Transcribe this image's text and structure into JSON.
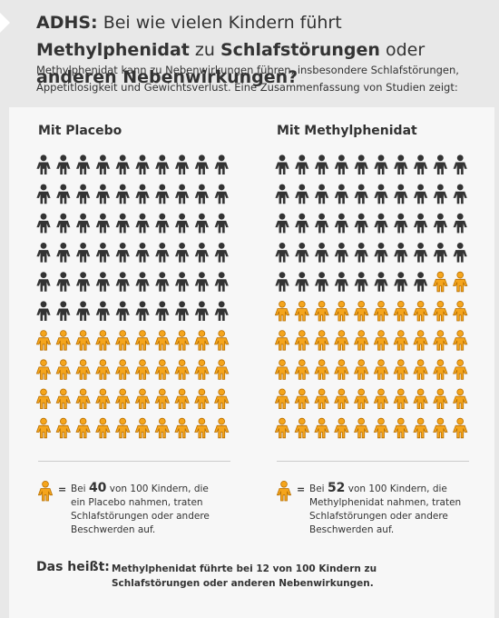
{
  "header": {
    "title": [
      {
        "text": "ADHS:",
        "bold": true
      },
      {
        "text": " Bei wie vielen Kindern führt ",
        "bold": false
      },
      {
        "text": "Methylphenidat",
        "bold": true
      },
      {
        "text": " zu ",
        "bold": false
      },
      {
        "text": "Schlafstörungen",
        "bold": true
      },
      {
        "text": " oder ",
        "bold": false
      },
      {
        "text": "anderen Nebenwirkungen?",
        "bold": true
      }
    ],
    "subtitle": "Methylphenidat kann zu Nebenwirkungen führen, insbesondere Schlafstörungen, Appetitlosigkeit und Gewichtsverlust. Eine Zusammenfassung von Studien zeigt:"
  },
  "panels": [
    {
      "title": "Mit Placebo",
      "affected": 40,
      "total": 100,
      "legend_equals": "=",
      "legend_before": "Bei",
      "legend_of": "von",
      "legend_after": "Kindern, die ein Placebo nahmen, traten Schlafstörungen oder andere Beschwerden auf."
    },
    {
      "title": "Mit Methylphenidat",
      "affected": 52,
      "total": 100,
      "legend_equals": "=",
      "legend_before": "Bei",
      "legend_of": "von",
      "legend_after": "Kindern, die Methylphenidat nahmen, traten Schlafstörungen oder andere Beschwerden auf."
    }
  ],
  "footer": {
    "label": "Das heißt:",
    "text": "Methylphenidat führte bei 12 von 100 Kindern zu Schlafstörungen oder anderen Nebenwirkungen."
  },
  "colors": {
    "unaffected": "#333333",
    "affected": "#f5a51c",
    "affected_outline": "#b86f00"
  }
}
